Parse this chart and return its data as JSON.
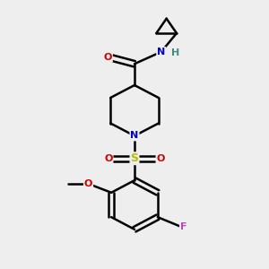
{
  "bg_color": "#eeeeee",
  "bond_color": "#000000",
  "bond_width": 1.8,
  "atom_colors": {
    "C": "#000000",
    "N": "#0000cc",
    "O": "#cc0000",
    "S": "#bbbb00",
    "F": "#bb44bb",
    "H": "#448888"
  },
  "figsize": [
    3.0,
    3.0
  ],
  "dpi": 100
}
